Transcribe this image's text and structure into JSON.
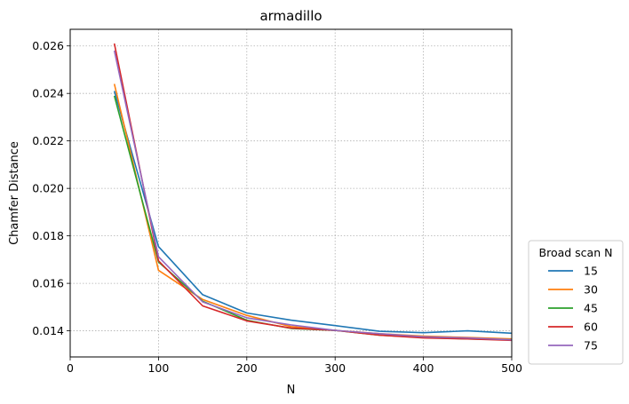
{
  "chart_data": {
    "type": "line",
    "title": "armadillo",
    "xlabel": "N",
    "ylabel": "Chamfer Distance",
    "xlim": [
      0,
      500
    ],
    "ylim": [
      0.0129,
      0.0267
    ],
    "xticks": [
      0,
      100,
      200,
      300,
      400,
      500
    ],
    "yticks": [
      0.014,
      0.016,
      0.018,
      0.02,
      0.022,
      0.024,
      0.026
    ],
    "xtick_labels": [
      "0",
      "100",
      "200",
      "300",
      "400",
      "500"
    ],
    "ytick_labels": [
      "0.014",
      "0.016",
      "0.018",
      "0.020",
      "0.022",
      "0.024",
      "0.026"
    ],
    "grid": true,
    "legend": {
      "title": "Broad scan N",
      "placement": "outside-right-bottom"
    },
    "x": [
      50,
      100,
      150,
      200,
      250,
      300,
      350,
      400,
      450,
      500
    ],
    "series": [
      {
        "name": "15",
        "color": "#1f77b4",
        "values": [
          0.0241,
          0.01755,
          0.01552,
          0.01475,
          0.01445,
          0.01422,
          0.01398,
          0.01392,
          0.014,
          0.0139
        ]
      },
      {
        "name": "30",
        "color": "#ff7f0e",
        "values": [
          0.0244,
          0.01655,
          0.01532,
          0.01465,
          0.01418,
          0.01402,
          0.01388,
          0.01378,
          0.01372,
          0.01366
        ]
      },
      {
        "name": "45",
        "color": "#2ca02c",
        "values": [
          0.0239,
          0.0169,
          0.01525,
          0.01445,
          0.0141,
          0.01402,
          0.01382,
          0.01372,
          0.01366,
          0.01362
        ]
      },
      {
        "name": "60",
        "color": "#d62728",
        "values": [
          0.0261,
          0.01695,
          0.01505,
          0.01442,
          0.01412,
          0.01402,
          0.01382,
          0.0137,
          0.01366,
          0.0136
        ]
      },
      {
        "name": "75",
        "color": "#9467bd",
        "values": [
          0.0258,
          0.01712,
          0.01522,
          0.01455,
          0.01425,
          0.01402,
          0.01388,
          0.01375,
          0.0137,
          0.01362
        ]
      }
    ]
  }
}
